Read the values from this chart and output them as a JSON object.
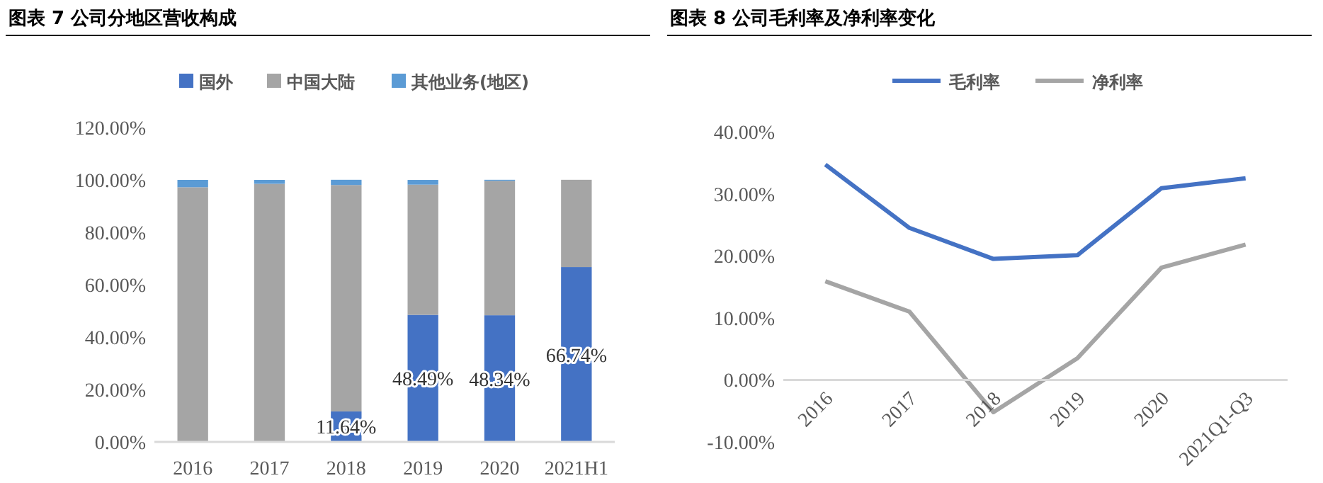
{
  "chart_data": [
    {
      "type": "bar",
      "title": "图表 7 公司分地区营收构成",
      "categories": [
        "2016",
        "2017",
        "2018",
        "2019",
        "2020",
        "2021H1"
      ],
      "stacked": true,
      "legend": "top",
      "grid": false,
      "series": [
        {
          "name": "国外",
          "color": "#4472c4",
          "values": [
            0,
            0,
            11.64,
            48.49,
            48.34,
            66.74
          ],
          "value_labels": [
            null,
            null,
            "11.64%",
            "48.49%",
            "48.34%",
            "66.74%"
          ]
        },
        {
          "name": "中国大陆",
          "color": "#a5a5a5",
          "values": [
            97.2,
            98.5,
            86.4,
            49.7,
            51.3,
            33.3
          ]
        },
        {
          "name": "其他业务(地区)",
          "color": "#5b9bd5",
          "values": [
            2.8,
            1.5,
            2.0,
            1.8,
            0.4,
            0
          ]
        }
      ],
      "ylim": [
        0,
        120
      ],
      "yticks": [
        {
          "value": 0,
          "label": "0.00%"
        },
        {
          "value": 20,
          "label": "20.00%"
        },
        {
          "value": 40,
          "label": "40.00%"
        },
        {
          "value": 60,
          "label": "60.00%"
        },
        {
          "value": 80,
          "label": "80.00%"
        },
        {
          "value": 100,
          "label": "100.00%"
        },
        {
          "value": 120,
          "label": "120.00%"
        }
      ]
    },
    {
      "type": "line",
      "title": "图表 8 公司毛利率及净利率变化",
      "categories": [
        "2016",
        "2017",
        "2018",
        "2019",
        "2020",
        "2021Q1-Q3"
      ],
      "legend": "top",
      "grid": false,
      "marker": "none",
      "series": [
        {
          "name": "毛利率",
          "color": "#4472c4",
          "values": [
            34.7,
            24.5,
            19.5,
            20.1,
            30.9,
            32.5
          ]
        },
        {
          "name": "净利率",
          "color": "#a5a5a5",
          "values": [
            15.9,
            11.0,
            -5.2,
            3.5,
            18.1,
            21.8
          ]
        }
      ],
      "ylim": [
        -10,
        40
      ],
      "yticks": [
        {
          "value": -10,
          "label": "-10.00%"
        },
        {
          "value": 0,
          "label": "0.00%"
        },
        {
          "value": 10,
          "label": "10.00%"
        },
        {
          "value": 20,
          "label": "20.00%"
        },
        {
          "value": 30,
          "label": "30.00%"
        },
        {
          "value": 40,
          "label": "40.00%"
        }
      ]
    }
  ]
}
